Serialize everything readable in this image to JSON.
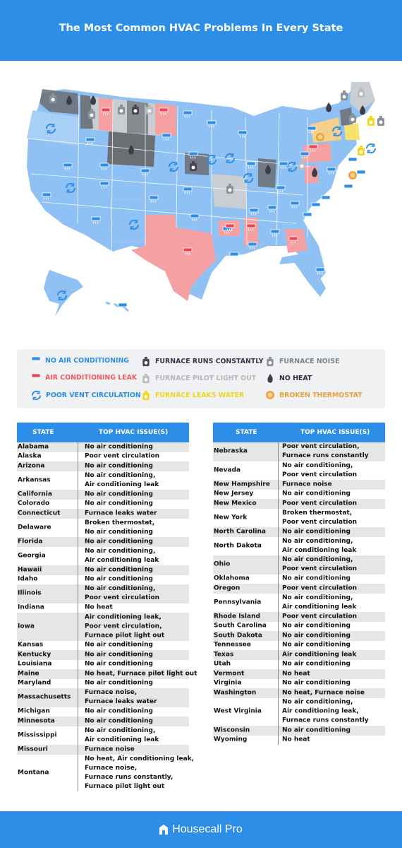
{
  "title": "The Most Common HVAC Problems In Every State",
  "colors": {
    "blue": "#2d8ee8",
    "light_blue": "#8fc1f5",
    "pink": "#f5a0a3",
    "dark_gray": "#6b6f73",
    "light_gray": "#cacdd1",
    "yellow": "#f8e16f",
    "orange": "#f5b041"
  },
  "legend": [
    {
      "label": "NO AIR CONDITIONING",
      "icon": "ac-unit-icon",
      "color": "#2d8ee8"
    },
    {
      "label": "FURNACE RUNS CONSTANTLY",
      "icon": "furnace-running-icon",
      "color": "#4a4455"
    },
    {
      "label": "FURNACE NOISE",
      "icon": "furnace-noise-icon",
      "color": "#8b939a"
    },
    {
      "label": "AIR CONDITIONING LEAK",
      "icon": "ac-leak-icon",
      "color": "#f05a5f"
    },
    {
      "label": "FURNACE PILOT LIGHT OUT",
      "icon": "pilot-light-icon",
      "color": "#b9bcc0"
    },
    {
      "label": "NO HEAT",
      "icon": "flame-icon",
      "color": "#3b3f45"
    },
    {
      "label": "POOR VENT CIRCULATION",
      "icon": "circulation-icon",
      "color": "#2d8ee8"
    },
    {
      "label": "FURNACE LEAKS WATER",
      "icon": "water-leak-icon",
      "color": "#f2d91a"
    },
    {
      "label": "BROKEN THERMOSTAT",
      "icon": "thermostat-icon",
      "color": "#e8a33c"
    }
  ],
  "table_headers": {
    "state": "STATE",
    "issue": "TOP HVAC ISSUE(S)"
  },
  "left_table": [
    {
      "state": "Alabama",
      "issue": "No air conditioning"
    },
    {
      "state": "Alaska",
      "issue": "Poor vent circulation"
    },
    {
      "state": "Arizona",
      "issue": "No air conditioning"
    },
    {
      "state": "Arkansas",
      "issue": "No air conditioning,\nAir conditioning leak"
    },
    {
      "state": "California",
      "issue": "No air conditioning"
    },
    {
      "state": "Colorado",
      "issue": "No air conditioning"
    },
    {
      "state": "Connecticut",
      "issue": "Furnace leaks water"
    },
    {
      "state": "Delaware",
      "issue": "Broken thermostat,\nNo air conditioning"
    },
    {
      "state": "Florida",
      "issue": "No air conditioning"
    },
    {
      "state": "Georgia",
      "issue": "No air conditioning,\nAir conditioning leak"
    },
    {
      "state": "Hawaii",
      "issue": "No air conditioning"
    },
    {
      "state": "Idaho",
      "issue": "No air conditioning"
    },
    {
      "state": "Illinois",
      "issue": "No air conditioning,\nPoor vent circulation"
    },
    {
      "state": "Indiana",
      "issue": "No heat"
    },
    {
      "state": "Iowa",
      "issue": "Air conditioning leak,\nPoor vent circulation,\nFurnace pilot light out"
    },
    {
      "state": "Kansas",
      "issue": "No air conditioning"
    },
    {
      "state": "Kentucky",
      "issue": "No air conditioning"
    },
    {
      "state": "Louisiana",
      "issue": "No air conditioning"
    },
    {
      "state": "Maine",
      "issue": "No heat, Furnace pilot light out"
    },
    {
      "state": "Maryland",
      "issue": "No air conditioning"
    },
    {
      "state": "Massachusetts",
      "issue": "Furnace noise,\nFurnace leaks water"
    },
    {
      "state": "Michigan",
      "issue": "No air conditioning"
    },
    {
      "state": "Minnesota",
      "issue": "No air conditioning"
    },
    {
      "state": "Mississippi",
      "issue": "No air conditioning,\nAir conditioning leak"
    },
    {
      "state": "Missouri",
      "issue": "Furnace noise"
    },
    {
      "state": "Montana",
      "issue": "No heat, Air conditioning leak,\nFurnace noise,\nFurnace runs constantly,\nFurnace pilot light out"
    }
  ],
  "right_table": [
    {
      "state": "Nebraska",
      "issue": "Poor vent circulation,\nFurnace runs constantly"
    },
    {
      "state": "Nevada",
      "issue": "No air conditioning,\nPoor vent circulation"
    },
    {
      "state": "New Hampshire",
      "issue": "Furnace noise"
    },
    {
      "state": "New Jersey",
      "issue": "No air conditioning"
    },
    {
      "state": "New Mexico",
      "issue": "Poor vent circulation"
    },
    {
      "state": "New York",
      "issue": "Broken thermostat,\nPoor vent circulation"
    },
    {
      "state": "North Carolina",
      "issue": "No air conditioning"
    },
    {
      "state": "North Dakota",
      "issue": "No air conditioning,\nAir conditioning leak"
    },
    {
      "state": "Ohio",
      "issue": "No air conditioning,\nPoor vent circulation"
    },
    {
      "state": "Oklahoma",
      "issue": "No air conditioning"
    },
    {
      "state": "Oregon",
      "issue": "Poor vent circulation"
    },
    {
      "state": "Pennsylvania",
      "issue": "No air conditioning,\nAir conditioning leak"
    },
    {
      "state": "Rhode Island",
      "issue": "Poor vent circulation"
    },
    {
      "state": "South Carolina",
      "issue": "No air conditioning"
    },
    {
      "state": "South Dakota",
      "issue": "No air conditioning"
    },
    {
      "state": "Tennessee",
      "issue": "No air conditioning"
    },
    {
      "state": "Texas",
      "issue": "Air conditioning leak"
    },
    {
      "state": "Utah",
      "issue": "No air conditioning"
    },
    {
      "state": "Vermont",
      "issue": "No heat"
    },
    {
      "state": "Virginia",
      "issue": "No air conditioning"
    },
    {
      "state": "Washington",
      "issue": "No heat, Furnace noise"
    },
    {
      "state": "West Virginia",
      "issue": "No air conditioning,\nAir conditioning leak,\nFurnace runs constantly"
    },
    {
      "state": "Wisconsin",
      "issue": "No air conditioning"
    },
    {
      "state": "Wyoming",
      "issue": "No heat"
    }
  ],
  "footer": {
    "brand": "Housecall Pro"
  }
}
